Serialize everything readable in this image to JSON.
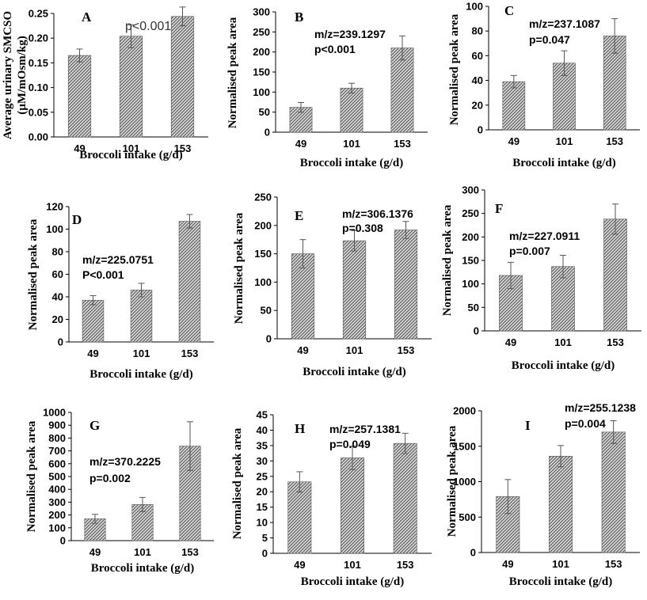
{
  "figure": {
    "x_label": "Broccoli intake (g/d)"
  },
  "chart_data": [
    {
      "type": "bar",
      "panel": "A",
      "categories": [
        "49",
        "101",
        "153"
      ],
      "values": [
        0.165,
        0.204,
        0.244
      ],
      "errors": [
        0.013,
        0.023,
        0.019
      ],
      "ylabel_lines": [
        "Average urinary SMCSO",
        "(µM/mOsm/kg)"
      ],
      "xlabel": "Broccoli intake (g/d)",
      "ylim": [
        0,
        0.25
      ],
      "yticks": [
        "0.00",
        "0.05",
        "0.10",
        "0.15",
        "0.20",
        "0.25"
      ],
      "annotation": [
        "p<0.001"
      ]
    },
    {
      "type": "bar",
      "panel": "B",
      "categories": [
        "49",
        "101",
        "153"
      ],
      "values": [
        62,
        110,
        210
      ],
      "errors": [
        12,
        12,
        30
      ],
      "ylabel_lines": [
        "Normalised peak area"
      ],
      "xlabel": "Broccoli intake (g/d)",
      "ylim": [
        0,
        300
      ],
      "yticks": [
        "0",
        "50",
        "100",
        "150",
        "200",
        "250",
        "300"
      ],
      "annotation": [
        "m/z=239.1297",
        "p<0.001"
      ]
    },
    {
      "type": "bar",
      "panel": "C",
      "categories": [
        "49",
        "101",
        "153"
      ],
      "values": [
        39,
        54,
        76
      ],
      "errors": [
        5,
        10,
        14
      ],
      "ylabel_lines": [
        "Normalised peak area"
      ],
      "xlabel": "Broccoli intake (g/d)",
      "ylim": [
        0,
        100
      ],
      "yticks": [
        "0",
        "20",
        "40",
        "60",
        "80",
        "100"
      ],
      "annotation": [
        "m/z=237.1087",
        "p=0.047"
      ]
    },
    {
      "type": "bar",
      "panel": "D",
      "categories": [
        "49",
        "101",
        "153"
      ],
      "values": [
        37,
        46,
        107
      ],
      "errors": [
        4,
        6,
        6
      ],
      "ylabel_lines": [
        "Normalised peak area"
      ],
      "xlabel": "Broccoli intake (g/d)",
      "ylim": [
        0,
        120
      ],
      "yticks": [
        "0",
        "20",
        "40",
        "60",
        "80",
        "100",
        "120"
      ],
      "annotation": [
        "m/z=225.0751",
        "P<0.001"
      ]
    },
    {
      "type": "bar",
      "panel": "E",
      "categories": [
        "49",
        "101",
        "153"
      ],
      "values": [
        150,
        173,
        192
      ],
      "errors": [
        25,
        18,
        15
      ],
      "ylabel_lines": [
        "Normalised peak area"
      ],
      "xlabel": "Broccoli intake (g/d)",
      "ylim": [
        0,
        250
      ],
      "yticks": [
        "0",
        "50",
        "100",
        "150",
        "200",
        "250"
      ],
      "annotation": [
        "m/z=306.1376",
        "p=0.308"
      ]
    },
    {
      "type": "bar",
      "panel": "F",
      "categories": [
        "49",
        "101",
        "153"
      ],
      "values": [
        118,
        137,
        238
      ],
      "errors": [
        28,
        24,
        32
      ],
      "ylabel_lines": [
        "Normalised peak area"
      ],
      "xlabel": "Broccoli intake (g/d)",
      "ylim": [
        0,
        300
      ],
      "yticks": [
        "0",
        "50",
        "100",
        "150",
        "200",
        "250",
        "300"
      ],
      "annotation": [
        "m/z=227.0911",
        "p=0.007"
      ]
    },
    {
      "type": "bar",
      "panel": "G",
      "categories": [
        "49",
        "101",
        "153"
      ],
      "values": [
        170,
        282,
        737
      ],
      "errors": [
        35,
        55,
        190
      ],
      "ylabel_lines": [
        "Normalised peak area"
      ],
      "xlabel": "Broccoli intake (g/d)",
      "ylim": [
        0,
        1000
      ],
      "yticks": [
        "0",
        "100",
        "200",
        "300",
        "400",
        "500",
        "600",
        "700",
        "800",
        "900",
        "1000"
      ],
      "annotation": [
        "m/z=370.2225",
        "p=0.002"
      ]
    },
    {
      "type": "bar",
      "panel": "H",
      "categories": [
        "49",
        "101",
        "153"
      ],
      "values": [
        23.2,
        31.0,
        35.7
      ],
      "errors": [
        3.3,
        3.8,
        3.3
      ],
      "ylabel_lines": [
        "Normalised peak area"
      ],
      "xlabel": "Broccoli intake (g/d)",
      "ylim": [
        0,
        45
      ],
      "yticks": [
        "0",
        "5",
        "10",
        "15",
        "20",
        "25",
        "30",
        "35",
        "40",
        "45"
      ],
      "annotation": [
        "m/z=257.1381",
        "p=0.049"
      ]
    },
    {
      "type": "bar",
      "panel": "I",
      "categories": [
        "49",
        "101",
        "153"
      ],
      "values": [
        790,
        1360,
        1700
      ],
      "errors": [
        240,
        150,
        160
      ],
      "ylabel_lines": [
        "Normalised peak area"
      ],
      "xlabel": "Broccoli intake (g/d)",
      "ylim": [
        0,
        2000
      ],
      "yticks": [
        "0",
        "500",
        "1000",
        "1500",
        "2000"
      ],
      "annotation": [
        "m/z=255.1238",
        "p=0.004"
      ]
    }
  ]
}
